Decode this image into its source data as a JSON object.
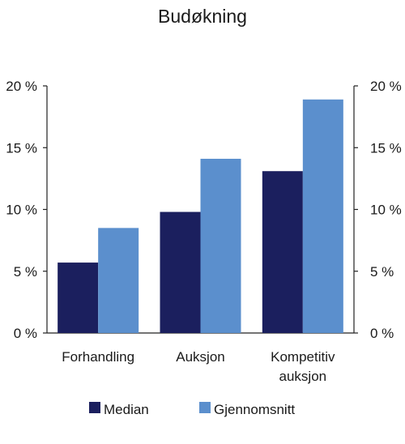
{
  "chart_data": {
    "type": "bar",
    "title": "Budøkning",
    "categories": [
      [
        "Forhandling"
      ],
      [
        "Auksjon"
      ],
      [
        "Kompetitiv",
        "auksjon"
      ]
    ],
    "series": [
      {
        "name": "Median",
        "values": [
          5.7,
          9.8,
          13.1
        ],
        "color": "#1b1f5e"
      },
      {
        "name": "Gjennomsnitt",
        "values": [
          8.5,
          14.1,
          18.9
        ],
        "color": "#5b8fcd"
      }
    ],
    "ylim": [
      0,
      20
    ],
    "yticks": [
      0,
      5,
      10,
      15,
      20
    ],
    "tick_format_suffix": " %",
    "dual_y_axis": true,
    "grid": false,
    "legend_position": "bottom"
  }
}
